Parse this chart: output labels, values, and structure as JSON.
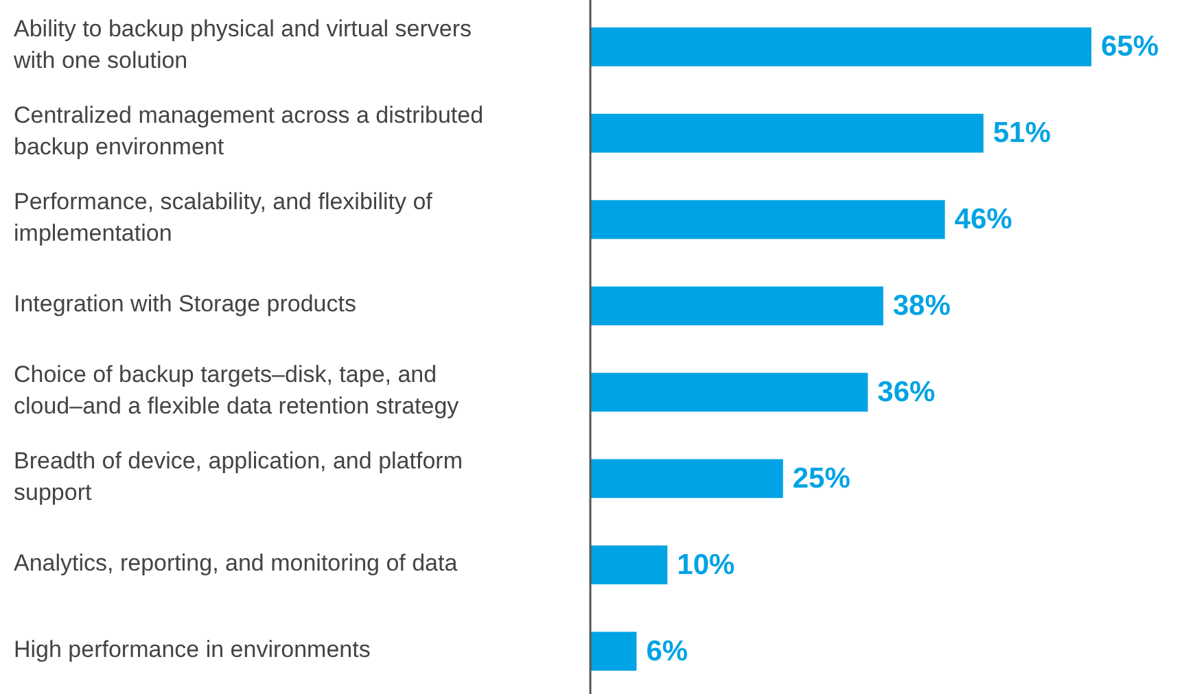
{
  "chart_data": {
    "type": "bar",
    "orientation": "horizontal",
    "categories": [
      "Ability to backup physical and virtual servers with one solution",
      "Centralized management across a distributed backup environment",
      "Performance, scalability, and flexibility of implementation",
      "Integration with Storage products",
      "Choice of backup targets–disk, tape, and cloud–and a flexible data retention strategy",
      "Breadth of device, application, and platform support",
      "Analytics, reporting, and monitoring of data",
      "High performance in environments"
    ],
    "values": [
      65,
      51,
      46,
      38,
      36,
      25,
      10,
      6
    ],
    "value_labels": [
      "65%",
      "51%",
      "46%",
      "38%",
      "36%",
      "25%",
      "10%",
      "6%"
    ],
    "color": "#00a3e4"
  }
}
